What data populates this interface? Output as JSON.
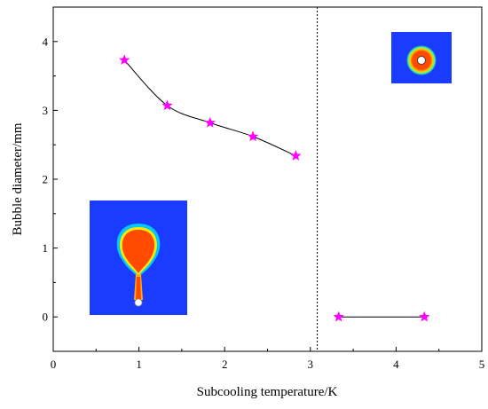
{
  "chart_data": {
    "type": "scatter",
    "xlabel": "Subcooling temperature/K",
    "ylabel": "Bubble diameter/mm",
    "xlim": [
      0,
      5
    ],
    "ylim": [
      -0.5,
      4.5
    ],
    "xticks": [
      "0",
      "1",
      "2",
      "3",
      "4",
      "5"
    ],
    "yticks": [
      "0",
      "1",
      "2",
      "3",
      "4"
    ],
    "grid": false,
    "threshold_line": {
      "x": 3.08,
      "style": "dotted"
    },
    "series": [
      {
        "points": [
          {
            "x": 0.83,
            "y": 3.73
          },
          {
            "x": 1.33,
            "y": 3.07
          },
          {
            "x": 1.83,
            "y": 2.82
          },
          {
            "x": 2.33,
            "y": 2.62
          },
          {
            "x": 2.83,
            "y": 2.34
          }
        ],
        "color": "#ff00ff",
        "marker": "star",
        "line": "smooth"
      },
      {
        "points": [
          {
            "x": 3.33,
            "y": 0.0
          },
          {
            "x": 4.33,
            "y": 0.0
          }
        ],
        "color": "#ff00ff",
        "marker": "star",
        "line": "straight"
      }
    ],
    "insets": [
      {
        "depicts": "detached bubble above nucleation site",
        "palette": [
          "#1a3cff",
          "#00c8ff",
          "#ffe800",
          "#ff4a00"
        ]
      },
      {
        "depicts": "condensing bubble ring around wire",
        "palette": [
          "#1a3cff",
          "#00c8ff",
          "#ffe800",
          "#ff4a00"
        ]
      }
    ]
  }
}
